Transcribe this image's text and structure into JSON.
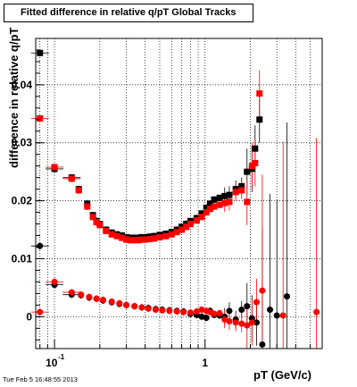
{
  "chart_data": {
    "type": "scatter",
    "title": "Fitted difference in relative q/pT  Global Tracks",
    "xlabel": "pT (GeV/c)",
    "ylabel": "difference in relative q/pT",
    "xscale": "log",
    "xlim": [
      0.075,
      6.0
    ],
    "ylim": [
      -0.0055,
      0.048
    ],
    "grid": true,
    "x_tick_labels": [
      "10^-1",
      "1"
    ],
    "y_tick_labels": [
      "0",
      "0.01",
      "0.02",
      "0.03",
      "0.04"
    ],
    "series": [
      {
        "color": "#000000",
        "marker": "square",
        "points": [
          [
            0.08,
            0.0455
          ],
          [
            0.1,
            0.0255
          ],
          [
            0.13,
            0.024
          ],
          [
            0.145,
            0.022
          ],
          [
            0.165,
            0.0195
          ],
          [
            0.18,
            0.0175
          ],
          [
            0.19,
            0.0165
          ],
          [
            0.2,
            0.016
          ],
          [
            0.22,
            0.015
          ],
          [
            0.24,
            0.0145
          ],
          [
            0.26,
            0.0142
          ],
          [
            0.28,
            0.014
          ],
          [
            0.3,
            0.0137
          ],
          [
            0.32,
            0.0136
          ],
          [
            0.34,
            0.0136
          ],
          [
            0.36,
            0.0136
          ],
          [
            0.38,
            0.0137
          ],
          [
            0.4,
            0.0137
          ],
          [
            0.43,
            0.0138
          ],
          [
            0.46,
            0.0139
          ],
          [
            0.5,
            0.0141
          ],
          [
            0.55,
            0.0143
          ],
          [
            0.6,
            0.0146
          ],
          [
            0.65,
            0.015
          ],
          [
            0.7,
            0.0155
          ],
          [
            0.75,
            0.016
          ],
          [
            0.8,
            0.0165
          ],
          [
            0.88,
            0.017
          ],
          [
            0.95,
            0.0178
          ],
          [
            1.02,
            0.0188
          ],
          [
            1.08,
            0.0195
          ],
          [
            1.15,
            0.0202
          ],
          [
            1.25,
            0.0205
          ],
          [
            1.35,
            0.0208
          ],
          [
            1.45,
            0.021
          ],
          [
            1.6,
            0.022
          ],
          [
            1.75,
            0.0225
          ],
          [
            1.9,
            0.025
          ],
          [
            2.05,
            0.0255
          ],
          [
            2.15,
            0.029
          ],
          [
            2.3,
            0.034
          ]
        ]
      },
      {
        "color": "#ff0000",
        "marker": "square",
        "points": [
          [
            0.08,
            0.0342
          ],
          [
            0.1,
            0.0258
          ],
          [
            0.13,
            0.0238
          ],
          [
            0.145,
            0.0218
          ],
          [
            0.165,
            0.019
          ],
          [
            0.18,
            0.0172
          ],
          [
            0.19,
            0.0163
          ],
          [
            0.2,
            0.0158
          ],
          [
            0.22,
            0.0148
          ],
          [
            0.24,
            0.0142
          ],
          [
            0.26,
            0.0139
          ],
          [
            0.28,
            0.0136
          ],
          [
            0.3,
            0.0133
          ],
          [
            0.32,
            0.0132
          ],
          [
            0.34,
            0.0132
          ],
          [
            0.36,
            0.0132
          ],
          [
            0.38,
            0.0133
          ],
          [
            0.4,
            0.0133
          ],
          [
            0.43,
            0.0134
          ],
          [
            0.46,
            0.0135
          ],
          [
            0.5,
            0.0137
          ],
          [
            0.55,
            0.0139
          ],
          [
            0.6,
            0.0142
          ],
          [
            0.65,
            0.0146
          ],
          [
            0.7,
            0.015
          ],
          [
            0.75,
            0.0155
          ],
          [
            0.8,
            0.016
          ],
          [
            0.88,
            0.0166
          ],
          [
            0.95,
            0.0172
          ],
          [
            1.02,
            0.018
          ],
          [
            1.08,
            0.0186
          ],
          [
            1.15,
            0.019
          ],
          [
            1.25,
            0.0193
          ],
          [
            1.35,
            0.0196
          ],
          [
            1.45,
            0.0198
          ],
          [
            1.6,
            0.0215
          ],
          [
            1.75,
            0.0218
          ],
          [
            1.9,
            0.0198
          ],
          [
            2.05,
            0.026
          ],
          [
            2.15,
            0.0265
          ],
          [
            2.3,
            0.0385
          ]
        ]
      },
      {
        "color": "#000000",
        "marker": "circle",
        "points": [
          [
            0.08,
            0.0122
          ],
          [
            0.1,
            0.0055
          ],
          [
            0.13,
            0.0038
          ],
          [
            0.15,
            0.0037
          ],
          [
            0.17,
            0.0033
          ],
          [
            0.19,
            0.0031
          ],
          [
            0.21,
            0.0028
          ],
          [
            0.24,
            0.0025
          ],
          [
            0.27,
            0.0022
          ],
          [
            0.3,
            0.002
          ],
          [
            0.34,
            0.0018
          ],
          [
            0.38,
            0.0016
          ],
          [
            0.42,
            0.0015
          ],
          [
            0.47,
            0.0013
          ],
          [
            0.52,
            0.0012
          ],
          [
            0.58,
            0.0011
          ],
          [
            0.65,
            0.001
          ],
          [
            0.72,
            0.0009
          ],
          [
            0.8,
            0.0005
          ],
          [
            0.88,
            0.0003
          ],
          [
            0.95,
            0.0
          ],
          [
            1.02,
            -0.0002
          ],
          [
            1.08,
            0.001
          ],
          [
            1.15,
            0.0003
          ],
          [
            1.25,
            0.0002
          ],
          [
            1.35,
            0.0
          ],
          [
            1.45,
            0.001
          ],
          [
            1.6,
            -0.0005
          ],
          [
            1.75,
            0.0012
          ],
          [
            1.9,
            0.0018
          ],
          [
            2.05,
            -0.0003
          ],
          [
            2.2,
            -0.001
          ],
          [
            2.4,
            -0.0048
          ],
          [
            2.7,
            0.0012
          ],
          [
            3.0,
            0.0002
          ],
          [
            3.5,
            0.0035
          ]
        ]
      },
      {
        "color": "#ff0000",
        "marker": "circle",
        "points": [
          [
            0.08,
            0.0008
          ],
          [
            0.1,
            0.006
          ],
          [
            0.13,
            0.0042
          ],
          [
            0.15,
            0.0038
          ],
          [
            0.17,
            0.0034
          ],
          [
            0.19,
            0.0031
          ],
          [
            0.21,
            0.0029
          ],
          [
            0.24,
            0.0026
          ],
          [
            0.27,
            0.0023
          ],
          [
            0.3,
            0.002
          ],
          [
            0.34,
            0.0018
          ],
          [
            0.38,
            0.0016
          ],
          [
            0.42,
            0.0014
          ],
          [
            0.47,
            0.0012
          ],
          [
            0.52,
            0.0011
          ],
          [
            0.58,
            0.001
          ],
          [
            0.65,
            0.0009
          ],
          [
            0.72,
            0.0008
          ],
          [
            0.8,
            0.0007
          ],
          [
            0.88,
            0.0009
          ],
          [
            0.95,
            0.0012
          ],
          [
            1.02,
            0.001
          ],
          [
            1.08,
            0.0008
          ],
          [
            1.15,
            0.0005
          ],
          [
            1.25,
            0.0006
          ],
          [
            1.35,
            -0.0005
          ],
          [
            1.45,
            -0.0008
          ],
          [
            1.6,
            -0.001
          ],
          [
            1.75,
            -0.0012
          ],
          [
            1.9,
            -0.0015
          ],
          [
            2.05,
            -0.001
          ],
          [
            2.2,
            0.0025
          ],
          [
            2.4,
            0.0045
          ],
          [
            3.3,
            0.0002
          ],
          [
            5.5,
            0.0008
          ]
        ]
      }
    ]
  },
  "footer": {
    "timestamp": "Tue Feb  5 16:48:55 2013"
  }
}
